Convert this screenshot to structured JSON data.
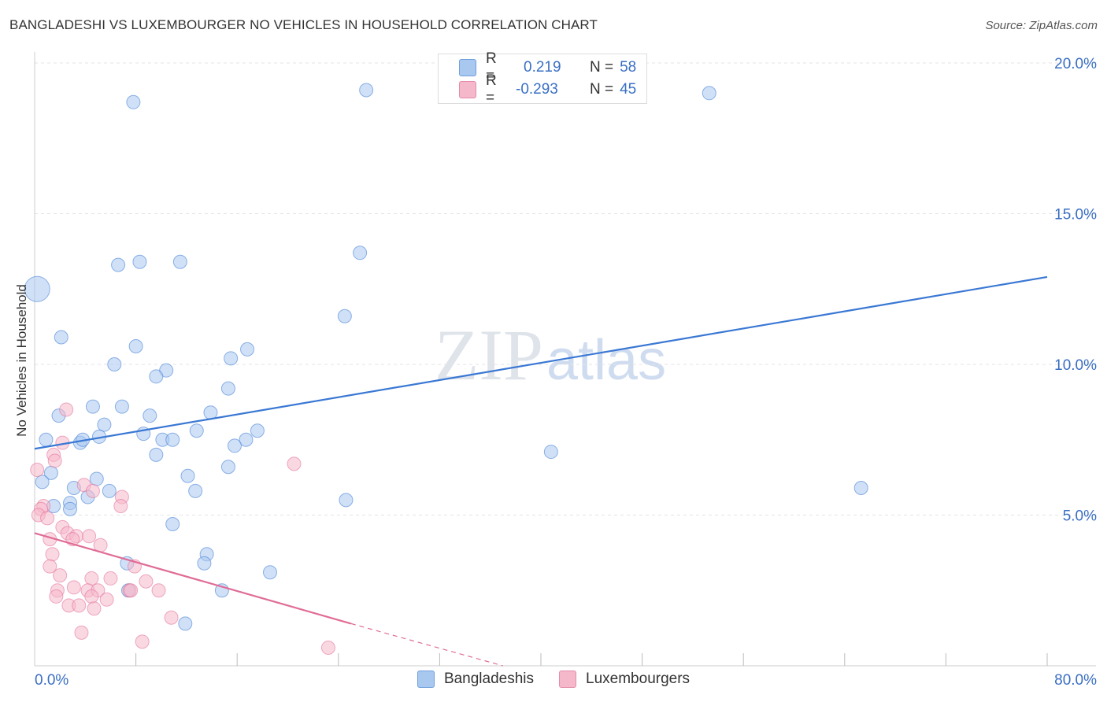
{
  "header": {
    "title": "BANGLADESHI VS LUXEMBOURGER NO VEHICLES IN HOUSEHOLD CORRELATION CHART",
    "source": "Source: ZipAtlas.com"
  },
  "watermark": {
    "zip": "ZIP",
    "atlas": "atlas"
  },
  "legend": {
    "rows": [
      {
        "r_label": "R =",
        "r_value": "0.219",
        "n_label": "N =",
        "n_value": "58",
        "color": "#a9c8f0"
      },
      {
        "r_label": "R =",
        "r_value": "-0.293",
        "n_label": "N =",
        "n_value": "45",
        "color": "#f5b8cb"
      }
    ]
  },
  "bottom_legend": {
    "items": [
      {
        "label": "Bangladeshis",
        "color": "#a9c8f0"
      },
      {
        "label": "Luxembourgers",
        "color": "#f5b8cb"
      }
    ]
  },
  "chart_data": {
    "type": "scatter",
    "title": "BANGLADESHI VS LUXEMBOURGER NO VEHICLES IN HOUSEHOLD CORRELATION CHART",
    "xlabel": "",
    "ylabel": "No Vehicles in Household",
    "xlim": [
      0,
      80
    ],
    "ylim": [
      0,
      20
    ],
    "x_tick_labels": [
      "0.0%",
      "80.0%"
    ],
    "y_ticks": [
      5,
      10,
      15,
      20
    ],
    "y_tick_labels": [
      "5.0%",
      "10.0%",
      "15.0%",
      "20.0%"
    ],
    "series": [
      {
        "name": "Bangladeshis",
        "color": "#3a78d4",
        "fill": "#a9c8f0",
        "trend": {
          "x": [
            0,
            80
          ],
          "y": [
            7.2,
            12.9
          ]
        },
        "points": [
          {
            "x": 0.2,
            "y": 12.5,
            "big": true
          },
          {
            "x": 7.8,
            "y": 18.7
          },
          {
            "x": 26.2,
            "y": 19.1
          },
          {
            "x": 53.3,
            "y": 19.0
          },
          {
            "x": 6.6,
            "y": 13.3
          },
          {
            "x": 8.3,
            "y": 13.4
          },
          {
            "x": 11.5,
            "y": 13.4
          },
          {
            "x": 25.7,
            "y": 13.7
          },
          {
            "x": 24.5,
            "y": 11.6
          },
          {
            "x": 2.1,
            "y": 10.9
          },
          {
            "x": 8.0,
            "y": 10.6
          },
          {
            "x": 16.8,
            "y": 10.5
          },
          {
            "x": 15.5,
            "y": 10.2
          },
          {
            "x": 6.3,
            "y": 10.0
          },
          {
            "x": 10.4,
            "y": 9.8
          },
          {
            "x": 9.6,
            "y": 9.6
          },
          {
            "x": 15.3,
            "y": 9.2
          },
          {
            "x": 4.6,
            "y": 8.6
          },
          {
            "x": 6.9,
            "y": 8.6
          },
          {
            "x": 1.9,
            "y": 8.3
          },
          {
            "x": 9.1,
            "y": 8.3
          },
          {
            "x": 13.9,
            "y": 8.4
          },
          {
            "x": 5.5,
            "y": 8.0
          },
          {
            "x": 12.8,
            "y": 7.8
          },
          {
            "x": 17.6,
            "y": 7.8
          },
          {
            "x": 8.6,
            "y": 7.7
          },
          {
            "x": 0.9,
            "y": 7.5
          },
          {
            "x": 5.1,
            "y": 7.6
          },
          {
            "x": 10.1,
            "y": 7.5
          },
          {
            "x": 10.9,
            "y": 7.5
          },
          {
            "x": 16.7,
            "y": 7.5
          },
          {
            "x": 3.6,
            "y": 7.4
          },
          {
            "x": 3.8,
            "y": 7.5
          },
          {
            "x": 15.8,
            "y": 7.3
          },
          {
            "x": 40.8,
            "y": 7.1
          },
          {
            "x": 9.6,
            "y": 7.0
          },
          {
            "x": 15.3,
            "y": 6.6
          },
          {
            "x": 1.3,
            "y": 6.4
          },
          {
            "x": 0.6,
            "y": 6.1
          },
          {
            "x": 4.9,
            "y": 6.2
          },
          {
            "x": 12.1,
            "y": 6.3
          },
          {
            "x": 3.1,
            "y": 5.9
          },
          {
            "x": 5.9,
            "y": 5.8
          },
          {
            "x": 12.7,
            "y": 5.8
          },
          {
            "x": 65.3,
            "y": 5.9
          },
          {
            "x": 4.2,
            "y": 5.6
          },
          {
            "x": 1.5,
            "y": 5.3
          },
          {
            "x": 2.8,
            "y": 5.4
          },
          {
            "x": 24.6,
            "y": 5.5
          },
          {
            "x": 2.8,
            "y": 5.2
          },
          {
            "x": 10.9,
            "y": 4.7
          },
          {
            "x": 13.6,
            "y": 3.7
          },
          {
            "x": 13.4,
            "y": 3.4
          },
          {
            "x": 7.3,
            "y": 3.4
          },
          {
            "x": 18.6,
            "y": 3.1
          },
          {
            "x": 7.4,
            "y": 2.5
          },
          {
            "x": 14.8,
            "y": 2.5
          },
          {
            "x": 11.9,
            "y": 1.4
          }
        ]
      },
      {
        "name": "Luxembourgers",
        "color": "#e06c96",
        "fill": "#f5b8cb",
        "trend": {
          "x": [
            0,
            25
          ],
          "y": [
            4.4,
            1.4
          ]
        },
        "trend_dashed": {
          "x": [
            25,
            37
          ],
          "y": [
            1.4,
            0.0
          ]
        },
        "points": [
          {
            "x": 2.5,
            "y": 8.5
          },
          {
            "x": 2.2,
            "y": 7.4
          },
          {
            "x": 1.5,
            "y": 7.0
          },
          {
            "x": 1.6,
            "y": 6.8
          },
          {
            "x": 20.5,
            "y": 6.7
          },
          {
            "x": 0.2,
            "y": 6.5
          },
          {
            "x": 3.9,
            "y": 6.0
          },
          {
            "x": 4.6,
            "y": 5.8
          },
          {
            "x": 6.9,
            "y": 5.6
          },
          {
            "x": 0.7,
            "y": 5.3
          },
          {
            "x": 0.5,
            "y": 5.2
          },
          {
            "x": 6.8,
            "y": 5.3
          },
          {
            "x": 0.3,
            "y": 5.0
          },
          {
            "x": 1.0,
            "y": 4.9
          },
          {
            "x": 2.2,
            "y": 4.6
          },
          {
            "x": 2.6,
            "y": 4.4
          },
          {
            "x": 3.3,
            "y": 4.3
          },
          {
            "x": 4.3,
            "y": 4.3
          },
          {
            "x": 1.2,
            "y": 4.2
          },
          {
            "x": 3.0,
            "y": 4.2
          },
          {
            "x": 5.2,
            "y": 4.0
          },
          {
            "x": 1.4,
            "y": 3.7
          },
          {
            "x": 1.2,
            "y": 3.3
          },
          {
            "x": 7.9,
            "y": 3.3
          },
          {
            "x": 2.0,
            "y": 3.0
          },
          {
            "x": 4.5,
            "y": 2.9
          },
          {
            "x": 6.0,
            "y": 2.9
          },
          {
            "x": 8.8,
            "y": 2.8
          },
          {
            "x": 3.1,
            "y": 2.6
          },
          {
            "x": 1.8,
            "y": 2.5
          },
          {
            "x": 4.2,
            "y": 2.5
          },
          {
            "x": 5.0,
            "y": 2.5
          },
          {
            "x": 7.5,
            "y": 2.5
          },
          {
            "x": 9.8,
            "y": 2.5
          },
          {
            "x": 1.7,
            "y": 2.3
          },
          {
            "x": 4.5,
            "y": 2.3
          },
          {
            "x": 5.7,
            "y": 2.2
          },
          {
            "x": 2.7,
            "y": 2.0
          },
          {
            "x": 3.5,
            "y": 2.0
          },
          {
            "x": 4.7,
            "y": 1.9
          },
          {
            "x": 10.8,
            "y": 1.6
          },
          {
            "x": 3.7,
            "y": 1.1
          },
          {
            "x": 8.5,
            "y": 0.8
          },
          {
            "x": 23.2,
            "y": 0.6
          },
          {
            "x": 7.6,
            "y": 2.5
          }
        ]
      }
    ]
  }
}
